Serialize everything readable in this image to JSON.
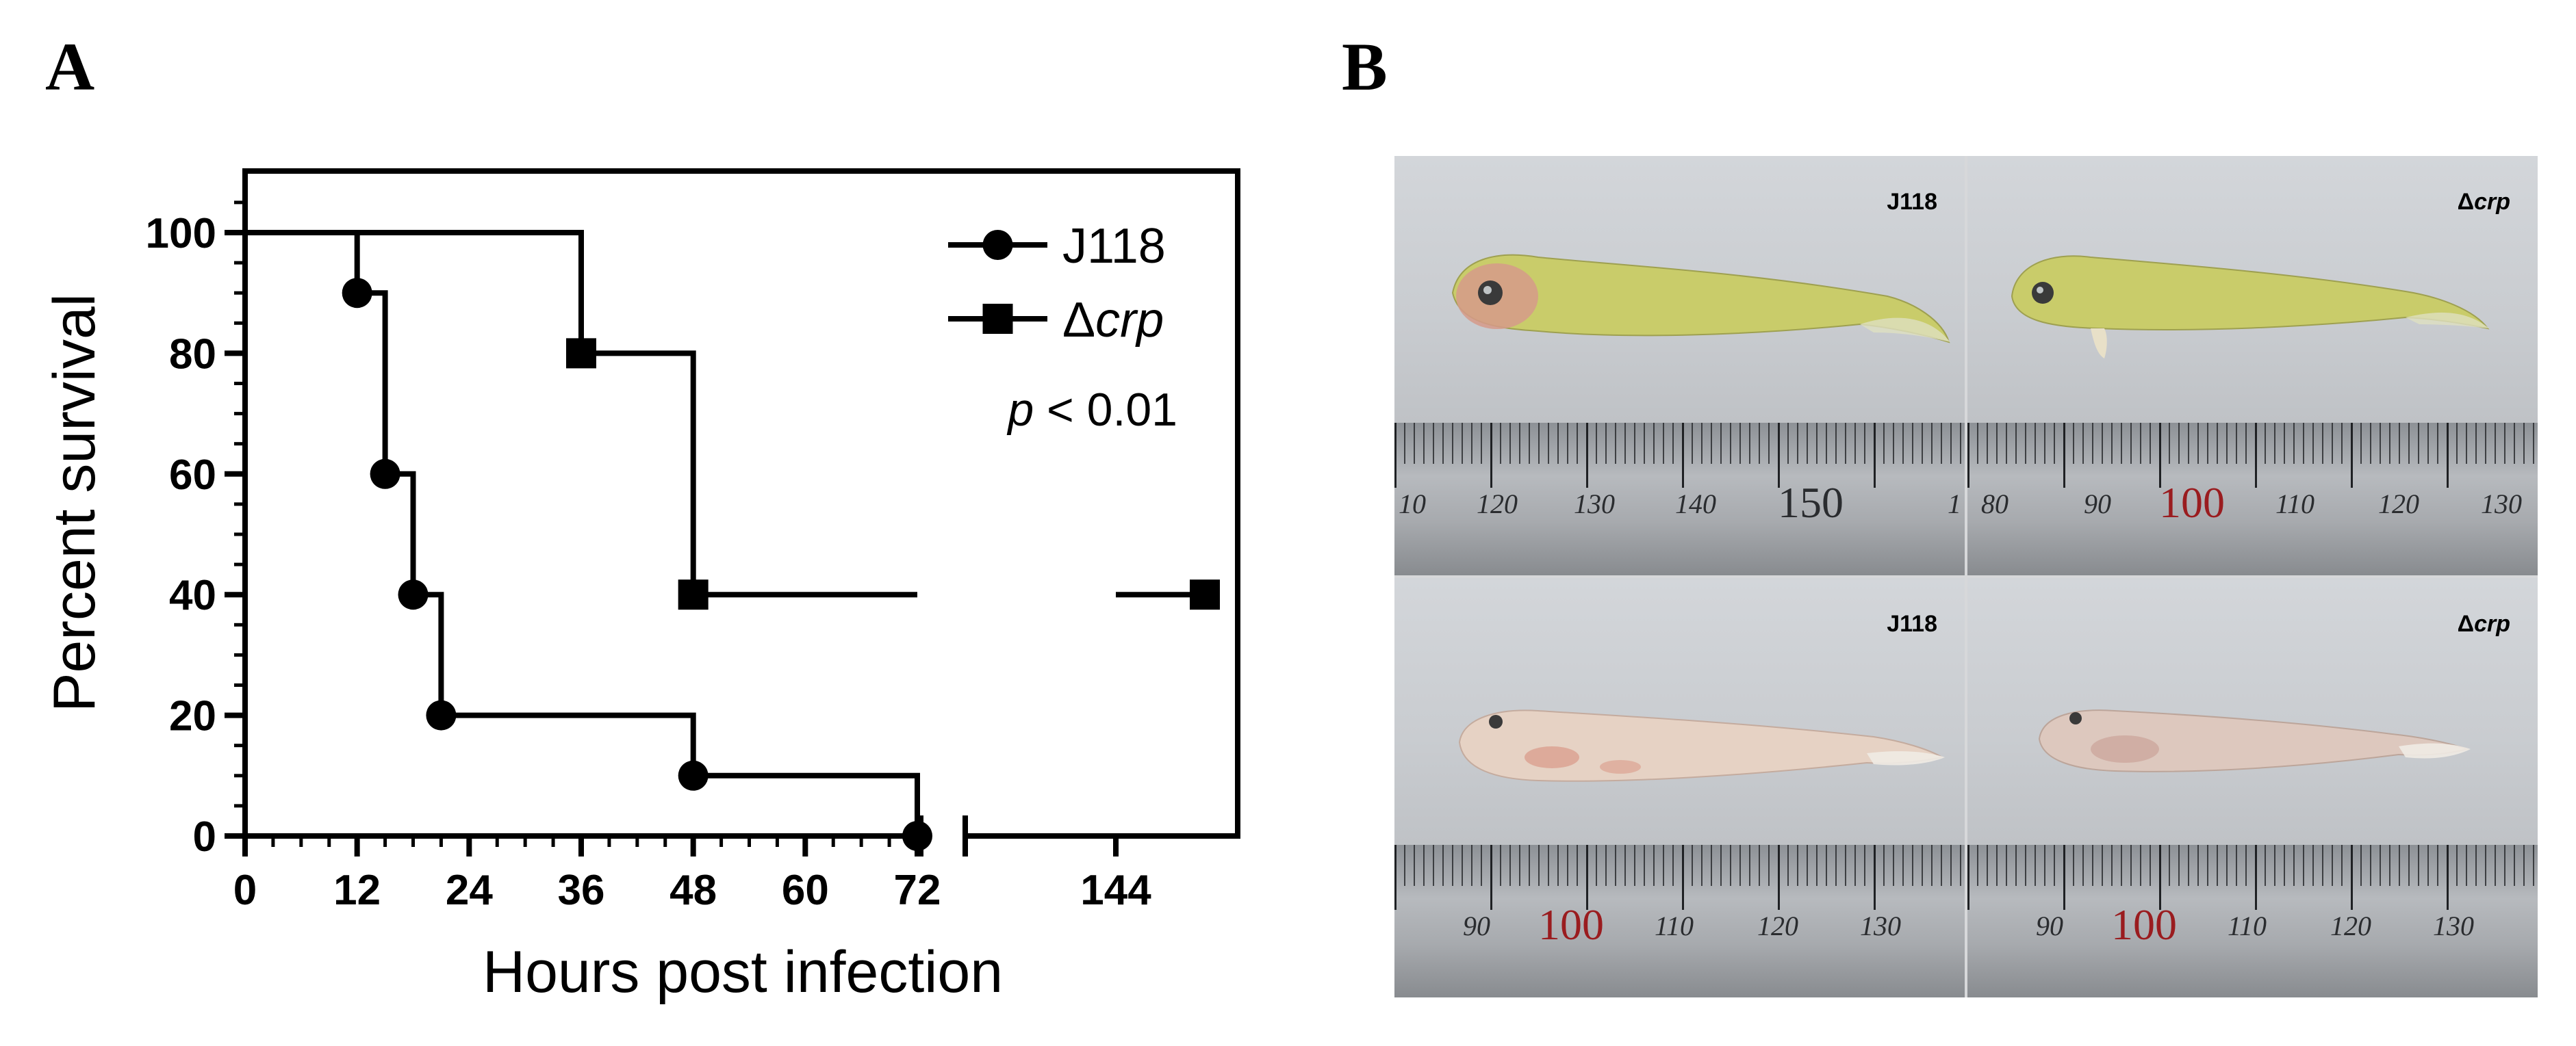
{
  "panels": {
    "a_label": "A",
    "b_label": "B"
  },
  "chart_data": {
    "type": "line",
    "subtype": "kaplan-meier-survival",
    "xlabel": "Hours post infection",
    "ylabel": "Percent survival",
    "x_ticks": [
      "0",
      "12",
      "24",
      "36",
      "48",
      "60",
      "72",
      "144"
    ],
    "y_ticks": [
      "0",
      "20",
      "40",
      "60",
      "80",
      "100"
    ],
    "ylim": [
      0,
      100
    ],
    "x_axis_break": {
      "after": 72,
      "resume_label": "144"
    },
    "annotation": {
      "p": "p",
      "rest": " < 0.01"
    },
    "legend_position": "top-right",
    "series": [
      {
        "name": "J118",
        "marker": "circle",
        "steps": [
          [
            0,
            100
          ],
          [
            12,
            90
          ],
          [
            15,
            60
          ],
          [
            18,
            40
          ],
          [
            21,
            20
          ],
          [
            48,
            10
          ],
          [
            72,
            0
          ]
        ],
        "markers": [
          [
            12,
            90
          ],
          [
            15,
            60
          ],
          [
            18,
            40
          ],
          [
            21,
            20
          ],
          [
            48,
            10
          ],
          [
            72,
            0
          ]
        ]
      },
      {
        "name_prefix": "Δ",
        "name_italic": "crp",
        "marker": "square",
        "steps": [
          [
            0,
            100
          ],
          [
            36,
            80
          ],
          [
            48,
            40
          ],
          [
            168,
            40
          ]
        ],
        "markers": [
          [
            36,
            80
          ],
          [
            48,
            40
          ],
          [
            168,
            40
          ]
        ]
      }
    ]
  },
  "photos": {
    "cells": [
      {
        "label": "J118",
        "ruler_numbers": [
          "10",
          "120",
          "130",
          "140",
          "150",
          "1"
        ],
        "big_index": 4,
        "red": false,
        "fish": "pale-green"
      },
      {
        "label_prefix": "Δ",
        "label_italic": "crp",
        "ruler_numbers": [
          "80",
          "90",
          "100",
          "110",
          "120",
          "130"
        ],
        "big_index": 2,
        "red": true,
        "fish": "pale-green"
      },
      {
        "label": "J118",
        "ruler_numbers": [
          "90",
          "100",
          "110",
          "120",
          "130"
        ],
        "big_index": 1,
        "red": true,
        "fish": "white"
      },
      {
        "label_prefix": "Δ",
        "label_italic": "crp",
        "ruler_numbers": [
          "90",
          "100",
          "110",
          "120",
          "130"
        ],
        "big_index": 1,
        "red": true,
        "fish": "white"
      }
    ]
  },
  "colors": {
    "line": "#000000",
    "fish_green": "#c9cc6a",
    "fish_white": "#e6d2c4",
    "ruler_red": "#9a1c1f"
  }
}
